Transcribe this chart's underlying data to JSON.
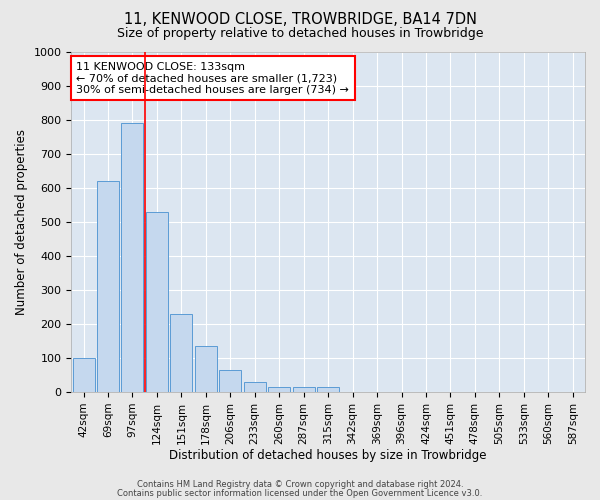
{
  "title": "11, KENWOOD CLOSE, TROWBRIDGE, BA14 7DN",
  "subtitle": "Size of property relative to detached houses in Trowbridge",
  "xlabel": "Distribution of detached houses by size in Trowbridge",
  "ylabel": "Number of detached properties",
  "bar_color": "#c5d8ee",
  "bar_edge_color": "#5b9bd5",
  "background_color": "#dce6f1",
  "grid_color": "#ffffff",
  "fig_background": "#e8e8e8",
  "categories": [
    "42sqm",
    "69sqm",
    "97sqm",
    "124sqm",
    "151sqm",
    "178sqm",
    "206sqm",
    "233sqm",
    "260sqm",
    "287sqm",
    "315sqm",
    "342sqm",
    "369sqm",
    "396sqm",
    "424sqm",
    "451sqm",
    "478sqm",
    "505sqm",
    "533sqm",
    "560sqm",
    "587sqm"
  ],
  "values": [
    100,
    620,
    790,
    530,
    230,
    135,
    65,
    30,
    15,
    15,
    15,
    0,
    0,
    0,
    0,
    0,
    0,
    0,
    0,
    0,
    0
  ],
  "ylim": [
    0,
    1000
  ],
  "yticks": [
    0,
    100,
    200,
    300,
    400,
    500,
    600,
    700,
    800,
    900,
    1000
  ],
  "red_line_x": 2.5,
  "annotation_title": "11 KENWOOD CLOSE: 133sqm",
  "annotation_line1": "← 70% of detached houses are smaller (1,723)",
  "annotation_line2": "30% of semi-detached houses are larger (734) →",
  "footer1": "Contains HM Land Registry data © Crown copyright and database right 2024.",
  "footer2": "Contains public sector information licensed under the Open Government Licence v3.0."
}
